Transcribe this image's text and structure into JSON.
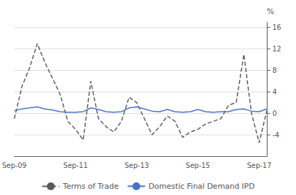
{
  "chart_data": {
    "type": "line",
    "ylabel": "%",
    "categories": [
      "Sep-09",
      null,
      null,
      null,
      null,
      null,
      null,
      null,
      "Sep-11",
      null,
      null,
      null,
      null,
      null,
      null,
      null,
      "Sep-13",
      null,
      null,
      null,
      null,
      null,
      null,
      null,
      "Sep-15",
      null,
      null,
      null,
      null,
      null,
      null,
      null,
      "Sep-17",
      null
    ],
    "series": [
      {
        "name": "Terms of Trade",
        "color": "#595959",
        "line_style": "dashed",
        "values": [
          -1.0,
          5.0,
          8.5,
          13.0,
          9.5,
          6.5,
          3.5,
          -1.5,
          -3.0,
          -5.0,
          6.0,
          -1.0,
          -2.5,
          -3.5,
          -1.5,
          3.0,
          2.0,
          -1.0,
          -4.0,
          -2.5,
          -0.5,
          -1.5,
          -4.5,
          -3.5,
          -3.0,
          -2.0,
          -1.5,
          -1.0,
          1.5,
          2.0,
          11.0,
          0.0,
          -5.5,
          0.5
        ]
      },
      {
        "name": "Domestic Final Demand IPD",
        "color": "#4472C4",
        "line_style": "solid",
        "values": [
          0.5,
          0.8,
          1.0,
          1.2,
          0.8,
          0.6,
          0.3,
          0.2,
          0.2,
          0.3,
          1.0,
          0.7,
          0.3,
          0.2,
          0.3,
          1.0,
          1.2,
          0.8,
          0.4,
          0.3,
          0.7,
          0.3,
          0.2,
          0.3,
          0.7,
          0.3,
          0.2,
          0.3,
          0.3,
          0.7,
          0.8,
          0.4,
          0.3,
          0.8
        ]
      }
    ],
    "ylim": [
      -8,
      17
    ],
    "yticks": [
      -4,
      0,
      4,
      8,
      12,
      16
    ],
    "grid": true,
    "legend": "bottom"
  }
}
